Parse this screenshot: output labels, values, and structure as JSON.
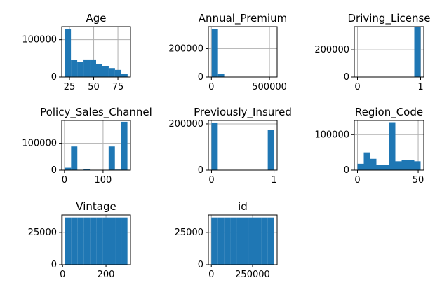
{
  "figure": {
    "background": "#ffffff",
    "bar_color": "#1f77b4",
    "grid_color": "#b0b0b0"
  },
  "chart_data": [
    {
      "type": "bar",
      "title": "Age",
      "xlabel": "",
      "ylabel": "",
      "xlim": [
        17,
        88
      ],
      "ylim": [
        0,
        135000
      ],
      "bin_edges": [
        20,
        26.5,
        33,
        39.5,
        46,
        52.5,
        59,
        65.5,
        72,
        78.5,
        85
      ],
      "values": [
        128000,
        45000,
        41000,
        47000,
        47000,
        35000,
        30000,
        24000,
        19000,
        8000
      ],
      "xticks": [
        25,
        50,
        75
      ],
      "xtick_labels": [
        "25",
        "50",
        "75"
      ],
      "yticks": [
        0,
        100000
      ],
      "ytick_labels": [
        "0",
        "100000"
      ],
      "grid": true
    },
    {
      "type": "bar",
      "title": "Annual_Premium",
      "xlabel": "",
      "ylabel": "",
      "xlim": [
        -26000,
        566000
      ],
      "ylim": [
        0,
        355000
      ],
      "bin_edges": [
        2630,
        56563,
        110496,
        164429,
        218362,
        272295,
        326228,
        380161,
        434094,
        488027,
        540165
      ],
      "values": [
        340000,
        20000,
        700,
        100,
        0,
        0,
        0,
        0,
        0,
        50
      ],
      "xticks": [
        0,
        500000
      ],
      "xtick_labels": [
        "0",
        "500000"
      ],
      "yticks": [
        0,
        200000
      ],
      "ytick_labels": [
        "0",
        "200000"
      ],
      "grid": true
    },
    {
      "type": "bar",
      "title": "Driving_License",
      "xlabel": "",
      "ylabel": "",
      "xlim": [
        -0.05,
        1.05
      ],
      "ylim": [
        0,
        370000
      ],
      "bin_edges": [
        0,
        0.1,
        0.2,
        0.3,
        0.4,
        0.5,
        0.6,
        0.7,
        0.8,
        0.9,
        1.0
      ],
      "values": [
        800,
        0,
        0,
        0,
        0,
        0,
        0,
        0,
        0,
        366000
      ],
      "xticks": [
        0,
        1
      ],
      "xtick_labels": [
        "0",
        "1"
      ],
      "yticks": [
        0,
        200000
      ],
      "ytick_labels": [
        "0",
        "200000"
      ],
      "grid": true
    },
    {
      "type": "bar",
      "title": "Policy_Sales_Channel",
      "xlabel": "",
      "ylabel": "",
      "xlim": [
        -7,
        171
      ],
      "ylim": [
        0,
        185000
      ],
      "bin_edges": [
        1,
        17.2,
        33.4,
        49.6,
        65.8,
        82,
        98.2,
        114.4,
        130.6,
        146.8,
        163
      ],
      "values": [
        9000,
        88000,
        1000,
        5000,
        1000,
        1000,
        1000,
        88000,
        2000,
        180000
      ],
      "xticks": [
        0,
        100
      ],
      "xtick_labels": [
        "0",
        "100"
      ],
      "yticks": [
        0,
        100000
      ],
      "ytick_labels": [
        "0",
        "100000"
      ],
      "grid": true
    },
    {
      "type": "bar",
      "title": "Previously_Insured",
      "xlabel": "",
      "ylabel": "",
      "xlim": [
        -0.05,
        1.05
      ],
      "ylim": [
        0,
        215000
      ],
      "bin_edges": [
        0,
        0.1,
        0.2,
        0.3,
        0.4,
        0.5,
        0.6,
        0.7,
        0.8,
        0.9,
        1.0
      ],
      "values": [
        206000,
        0,
        0,
        0,
        0,
        0,
        0,
        0,
        0,
        174000
      ],
      "xticks": [
        0,
        1
      ],
      "xtick_labels": [
        "0",
        "1"
      ],
      "yticks": [
        0,
        200000
      ],
      "ytick_labels": [
        "0",
        "200000"
      ],
      "grid": true
    },
    {
      "type": "bar",
      "title": "Region_Code",
      "xlabel": "",
      "ylabel": "",
      "xlim": [
        -2.6,
        54.6
      ],
      "ylim": [
        0,
        140000
      ],
      "bin_edges": [
        0,
        5.2,
        10.4,
        15.6,
        20.8,
        26,
        31.2,
        36.4,
        41.6,
        46.8,
        52
      ],
      "values": [
        18000,
        50000,
        32000,
        14000,
        14000,
        135000,
        25000,
        28000,
        28000,
        25000
      ],
      "xticks": [
        0,
        50
      ],
      "xtick_labels": [
        "0",
        "50"
      ],
      "yticks": [
        0,
        100000
      ],
      "ytick_labels": [
        "0",
        "100000"
      ],
      "grid": true
    },
    {
      "type": "bar",
      "title": "Vintage",
      "xlabel": "",
      "ylabel": "",
      "xlim": [
        -4,
        313
      ],
      "ylim": [
        0,
        38500
      ],
      "bin_edges": [
        10,
        39,
        68,
        97,
        126,
        155,
        184,
        213,
        242,
        271,
        299
      ],
      "values": [
        36500,
        36500,
        36500,
        36500,
        36500,
        36500,
        36500,
        36500,
        36500,
        36500
      ],
      "xticks": [
        0,
        200
      ],
      "xtick_labels": [
        "0",
        "200"
      ],
      "yticks": [
        0,
        25000
      ],
      "ytick_labels": [
        "0",
        "25000"
      ],
      "grid": true
    },
    {
      "type": "bar",
      "title": "id",
      "xlabel": "",
      "ylabel": "",
      "xlim": [
        -18000,
        399000
      ],
      "ylim": [
        0,
        38500
      ],
      "bin_edges": [
        1,
        38111,
        76221,
        114332,
        152442,
        190553,
        228663,
        266773,
        304884,
        342994,
        381109
      ],
      "values": [
        36500,
        36500,
        36500,
        36500,
        36500,
        36500,
        36500,
        36500,
        36500,
        36500
      ],
      "xticks": [
        0,
        250000
      ],
      "xtick_labels": [
        "0",
        "250000"
      ],
      "yticks": [
        0,
        25000
      ],
      "ytick_labels": [
        "0",
        "25000"
      ],
      "grid": true
    }
  ]
}
